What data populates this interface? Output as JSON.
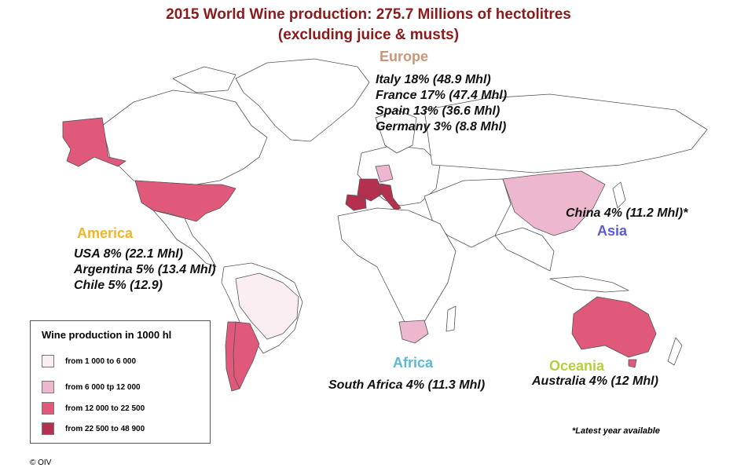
{
  "title": {
    "line1": "2015 World Wine production: 275.7 Millions of hectolitres",
    "line2": "(excluding juice & musts)"
  },
  "regions": {
    "europe": {
      "label": "Europe",
      "color": "#c9967a",
      "stats": [
        "Italy 18% (48.9 Mhl)",
        "France 17% (47.4 Mhl)",
        "Spain 13% (36.6 Mhl)",
        "Germany 3% (8.8 Mhl)"
      ]
    },
    "america": {
      "label": "America",
      "color": "#f0b429",
      "stats": [
        "USA 8% (22.1 Mhl)",
        "Argentina 5% (13.4 Mhl)",
        "Chile 5% (12.9)"
      ]
    },
    "asia": {
      "label": "Asia",
      "color": "#5b5bd6",
      "stats": [
        "China 4% (11.2 Mhl)*"
      ]
    },
    "africa": {
      "label": "Africa",
      "color": "#5bb8d6",
      "stats": [
        "South Africa 4% (11.3 Mhl)"
      ]
    },
    "oceania": {
      "label": "Oceania",
      "color": "#b7cf3a",
      "stats": [
        "Australia 4% (12 Mhl)"
      ]
    }
  },
  "legend": {
    "title": "Wine production in 1000 hl",
    "items": [
      {
        "label": "from 1 000 to 6 000",
        "color": "#fbeef2"
      },
      {
        "label": "from 6 000 tp 12 000",
        "color": "#edb7cf"
      },
      {
        "label": "from 12 000 to 22 500",
        "color": "#e0587a"
      },
      {
        "label": "from 22 500 to 48 900",
        "color": "#b5304f"
      }
    ]
  },
  "footnote": "*Latest year available",
  "copyright": "© OIV"
}
